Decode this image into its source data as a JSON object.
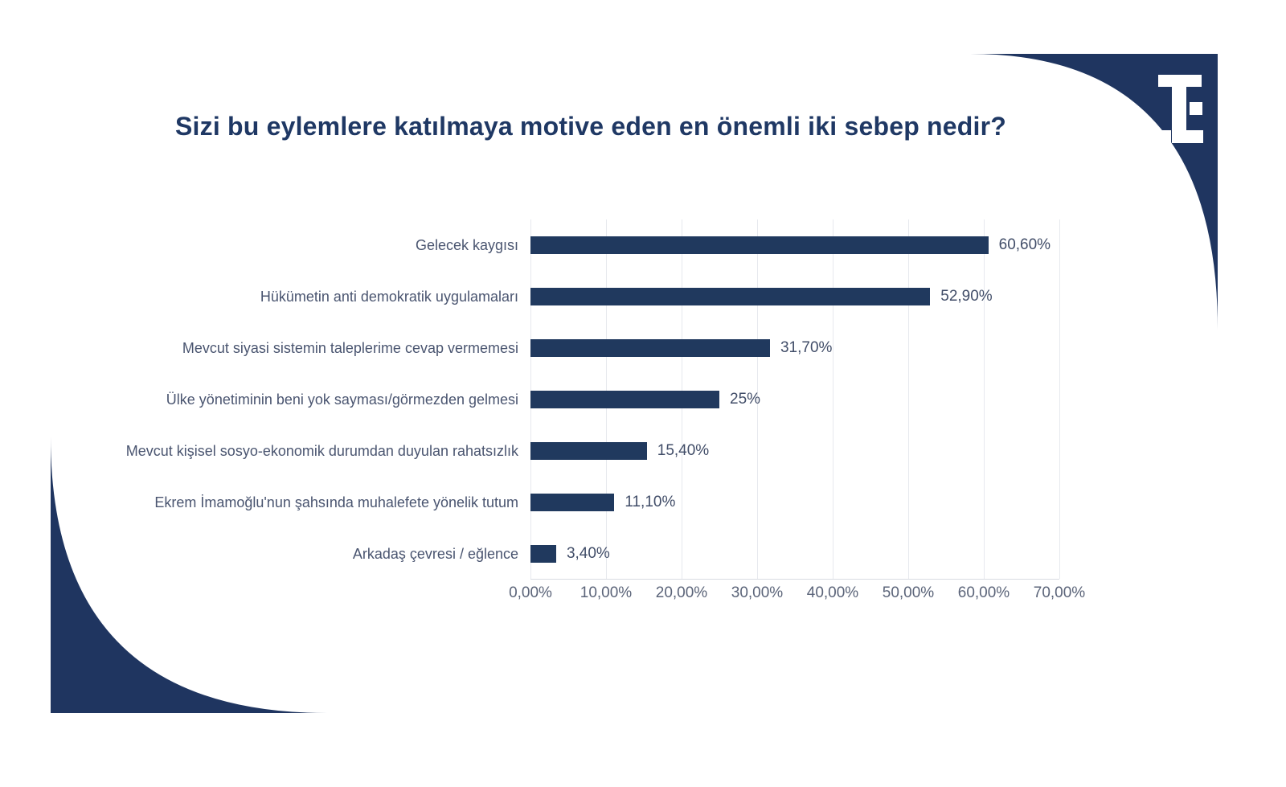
{
  "title": "Sizi bu eylemlere katılmaya motive eden en önemli iki sebep nedir?",
  "logo": {
    "name": "TE monogram"
  },
  "colors": {
    "bar": "#20395E",
    "corner_decoration": "#1F3560",
    "title_text": "#1F3864",
    "category_label": "#4A5570",
    "value_label": "#414D68",
    "axis_label": "#5B6479",
    "gridline": "#E7E9EE"
  },
  "chart_data": {
    "type": "bar",
    "orientation": "horizontal",
    "title": "Sizi bu eylemlere katılmaya motive eden en önemli iki sebep nedir?",
    "categories": [
      "Gelecek kaygısı",
      "Hükümetin anti demokratik uygulamaları",
      "Mevcut siyasi sistemin taleplerime cevap vermemesi",
      "Ülke yönetiminin beni yok sayması/görmezden gelmesi",
      "Mevcut kişisel sosyo-ekonomik durumdan duyulan rahatsızlık",
      "Ekrem İmamoğlu'nun şahsında muhalefete yönelik tutum",
      "Arkadaş çevresi / eğlence"
    ],
    "values": [
      60.6,
      52.9,
      31.7,
      25,
      15.4,
      11.1,
      3.4
    ],
    "value_labels": [
      "60,60%",
      "52,90%",
      "31,70%",
      "25%",
      "15,40%",
      "11,10%",
      "3,40%"
    ],
    "x_ticks": [
      "0,00%",
      "10,00%",
      "20,00%",
      "30,00%",
      "40,00%",
      "50,00%",
      "60,00%",
      "70,00%"
    ],
    "xlim": [
      0,
      70
    ],
    "xlabel": "",
    "ylabel": "",
    "grid": "vertical",
    "legend": "none"
  }
}
